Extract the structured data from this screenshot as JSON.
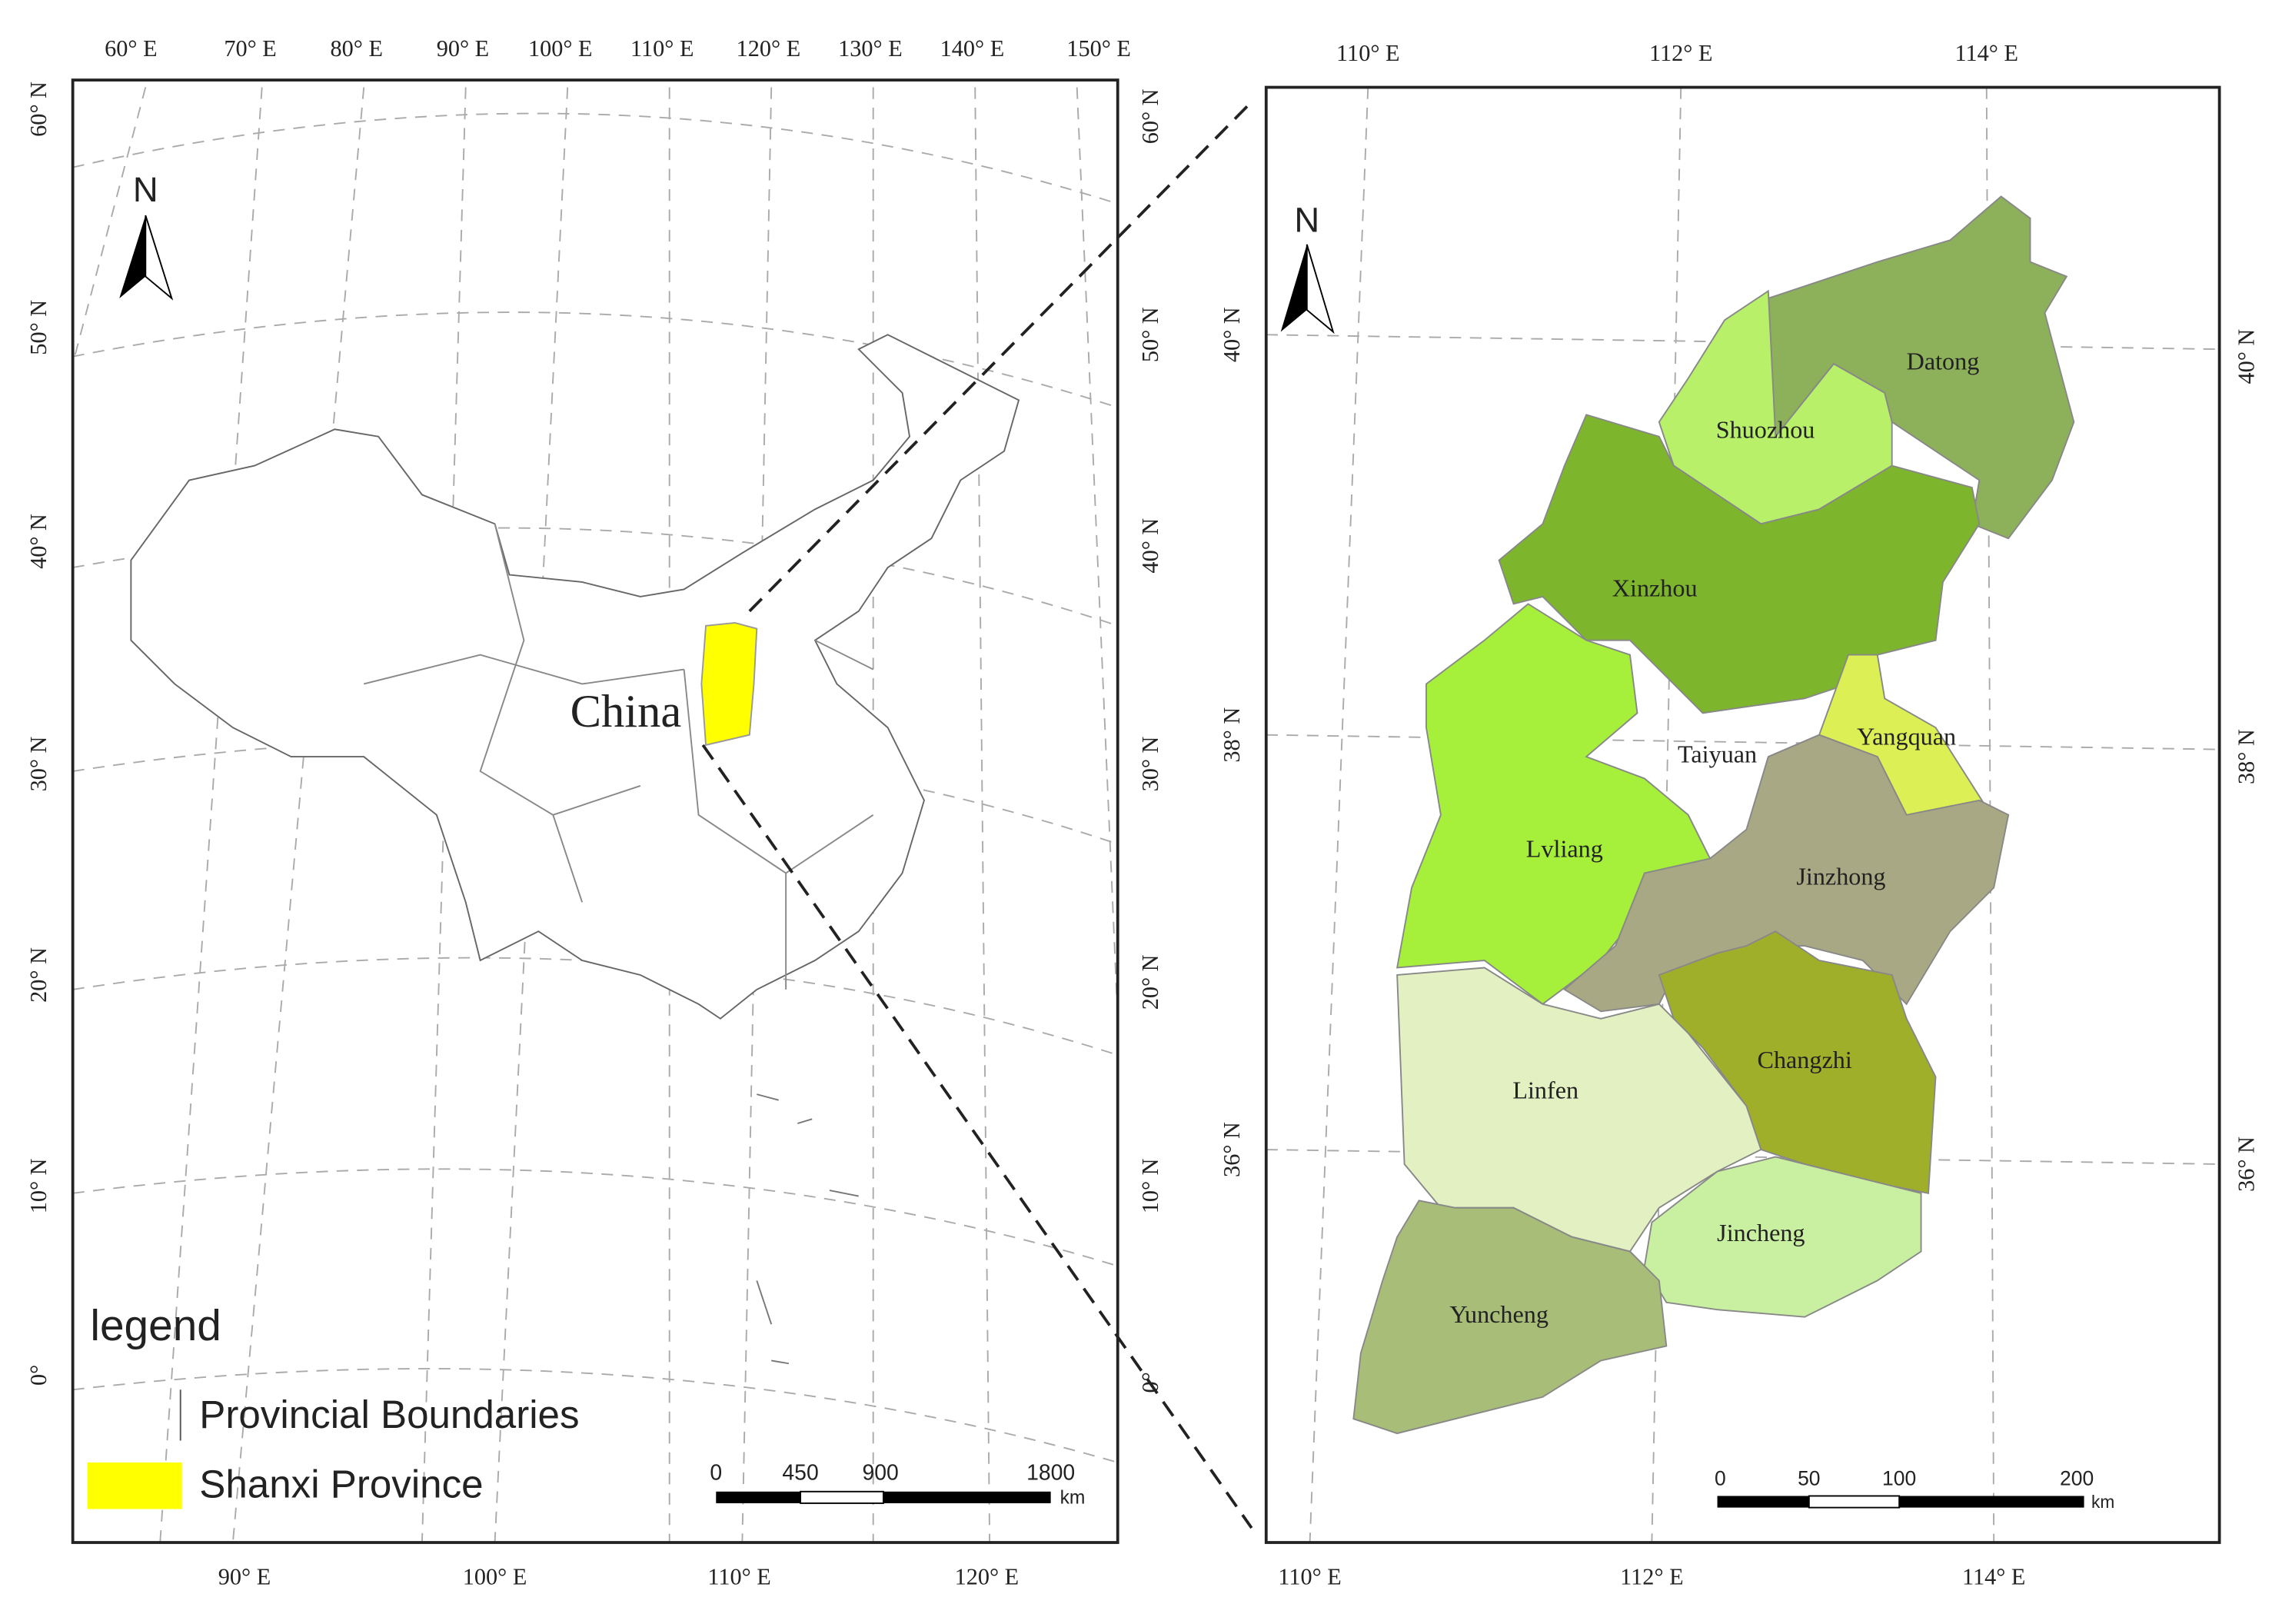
{
  "left_map": {
    "top_longitudes": [
      "60° E",
      "70° E",
      "80° E",
      "90° E",
      "100° E",
      "110° E",
      "120° E",
      "130° E",
      "140° E",
      "150° E"
    ],
    "bottom_longitudes": [
      "90° E",
      "100° E",
      "110° E",
      "120° E"
    ],
    "left_latitudes": [
      "60° N",
      "50° N",
      "40° N",
      "30° N",
      "20° N",
      "10° N",
      "0°"
    ],
    "right_latitudes": [
      "60° N",
      "50° N",
      "40° N",
      "30° N",
      "20° N",
      "10° N",
      "0°"
    ],
    "north": "N",
    "country": "China",
    "scale": [
      "0",
      "450",
      "900",
      "1800"
    ],
    "scale_unit": "km"
  },
  "legend": {
    "title": "legend",
    "items": [
      "Provincial Boundaries",
      "Shanxi Province"
    ]
  },
  "right_map": {
    "top_longitudes": [
      "110° E",
      "112° E",
      "114° E"
    ],
    "bottom_longitudes": [
      "110° E",
      "112° E",
      "114° E"
    ],
    "left_latitudes": [
      "40° N",
      "38° N",
      "36° N"
    ],
    "right_latitudes": [
      "40° N",
      "38° N",
      "36° N"
    ],
    "north": "N",
    "cities": [
      "Datong",
      "Shuozhou",
      "Xinzhou",
      "Yangquan",
      "Taiyuan",
      "Lvliang",
      "Jinzhong",
      "Changzhi",
      "Linfen",
      "Jincheng",
      "Yuncheng"
    ],
    "scale": [
      "0",
      "50",
      "100",
      "200"
    ],
    "scale_unit": "km"
  }
}
